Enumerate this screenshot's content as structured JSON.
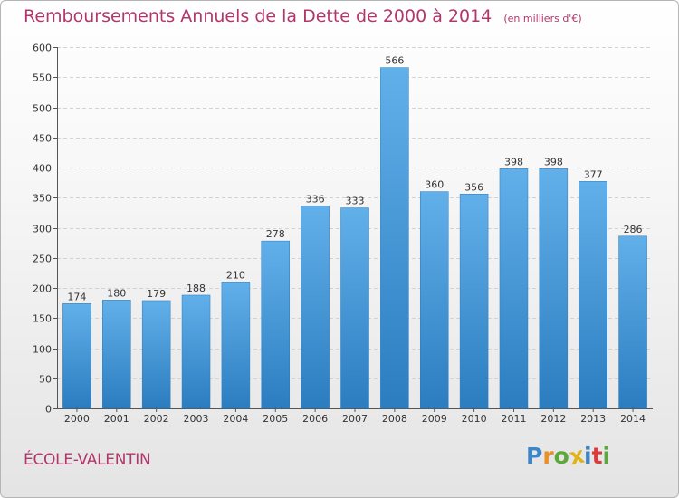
{
  "chart_data": {
    "type": "bar",
    "title": "Remboursements Annuels de la Dette de 2000 à 2014",
    "subtitle": "(en milliers d'€)",
    "categories": [
      "2000",
      "2001",
      "2002",
      "2003",
      "2004",
      "2005",
      "2006",
      "2007",
      "2008",
      "2009",
      "2010",
      "2011",
      "2012",
      "2013",
      "2014"
    ],
    "values": [
      174,
      180,
      179,
      188,
      210,
      278,
      336,
      333,
      566,
      360,
      356,
      398,
      398,
      377,
      286
    ],
    "ylim": [
      0,
      600
    ],
    "yticks": [
      0,
      50,
      100,
      150,
      200,
      250,
      300,
      350,
      400,
      450,
      500,
      550,
      600
    ],
    "grid": true,
    "data_labels": true,
    "colors": {
      "bar_top": "#62b0ea",
      "bar_bottom": "#2b7dc0",
      "grid": "#d2d2d2",
      "title": "#b1366b"
    }
  },
  "footer": {
    "city": "ÉCOLE-VALENTIN"
  },
  "logo": {
    "letters": [
      {
        "char": "P",
        "color": "#3b86c8"
      },
      {
        "char": "r",
        "color": "#e98e2a"
      },
      {
        "char": "o",
        "color": "#5aa939"
      },
      {
        "char": "x",
        "color": "#e0b21b"
      },
      {
        "char": "i",
        "color": "#3b86c8"
      },
      {
        "char": "t",
        "color": "#d93c3c"
      },
      {
        "char": "i",
        "color": "#5aa939"
      }
    ]
  }
}
